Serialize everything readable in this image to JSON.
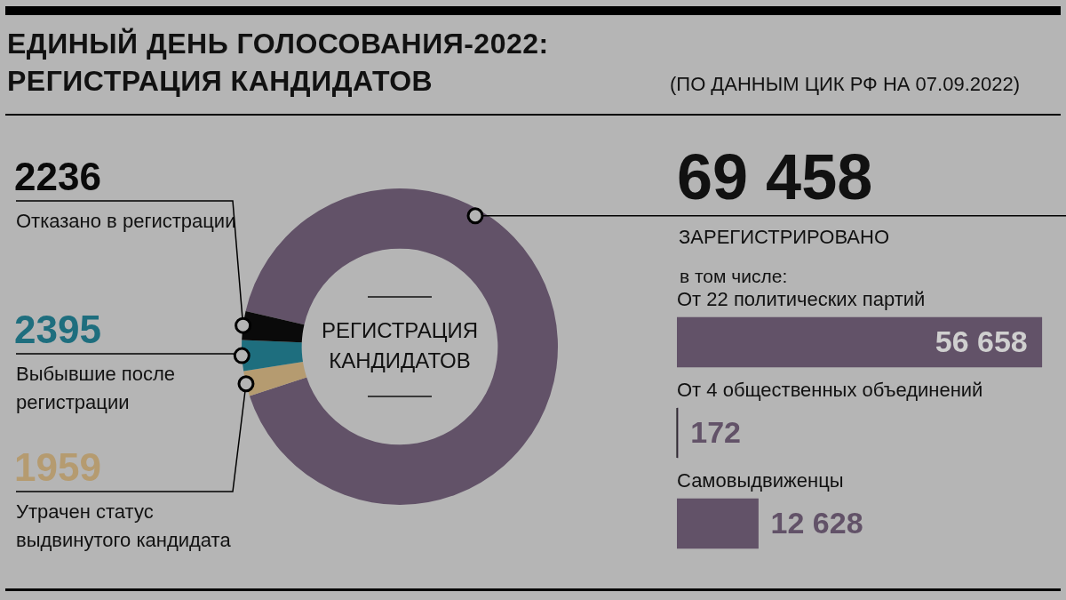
{
  "chart_data": [
    {
      "type": "donut",
      "title": "ЕДИНЫЙ ДЕНЬ ГОЛОСОВАНИЯ-2022: РЕГИСТРАЦИЯ КАНДИДАТОВ",
      "subtitle": "(ПО ДАННЫМ ЦИК РФ НА 07.09.2022)",
      "categories": [
        "ЗАРЕГИСТРИРОВАНО",
        "Утрачен статус выдвинутого кандидата",
        "Выбывшие после регистрации",
        "Отказано в регистрации"
      ],
      "values": [
        69458,
        1959,
        2395,
        2236
      ],
      "value_labels": [
        "69 458",
        "1959",
        "2395",
        "2236"
      ],
      "colors": [
        "#625268",
        "#b59b70",
        "#1e6e7e",
        "#0a0a0a"
      ],
      "annotations": [
        "РЕГИСТРАЦИЯ КАНДИДАТОВ"
      ],
      "legend": false
    },
    {
      "type": "bar",
      "orientation": "horizontal",
      "subtitle": "в том числе:",
      "categories": [
        "От 22 политических партий",
        "От 4 общественных объединений",
        "Самовыдвиженцы"
      ],
      "values": [
        56658,
        172,
        12628
      ],
      "value_labels": [
        "56 658",
        "172",
        "12 628"
      ],
      "color": "#625268",
      "legend": false
    }
  ]
}
